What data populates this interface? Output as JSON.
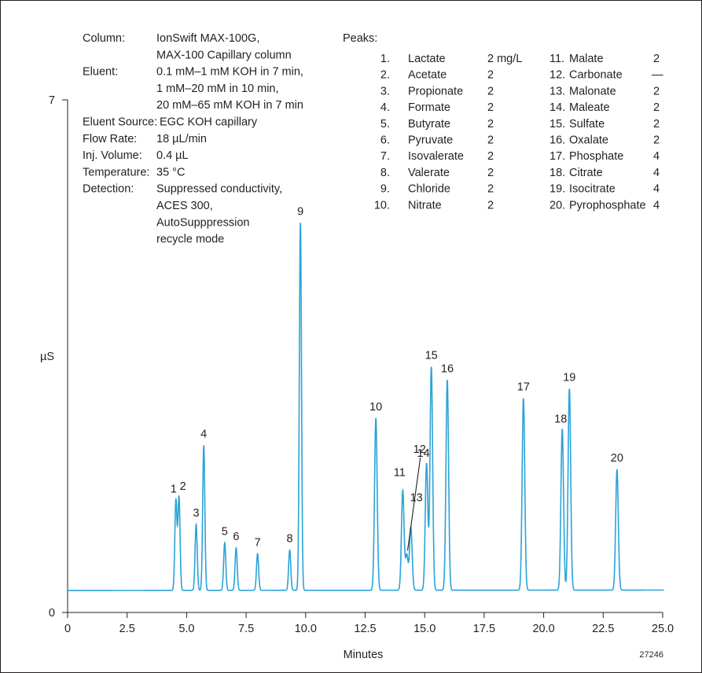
{
  "chart_data": {
    "type": "line",
    "xlabel": "Minutes",
    "ylabel": "µS",
    "xlim": [
      0,
      25
    ],
    "ylim": [
      0,
      7
    ],
    "x_ticks": [
      "0",
      "2.5",
      "5.0",
      "7.5",
      "10.0",
      "12.5",
      "15.0",
      "17.5",
      "20.0",
      "22.5",
      "25.0"
    ],
    "y_ticks": [
      "0",
      "7"
    ],
    "line_color": "#2ba3d8",
    "figure_id": "27246",
    "baseline": 0.3,
    "peaks": [
      {
        "label": "1",
        "x": 4.55,
        "height": 1.23
      },
      {
        "label": "2",
        "x": 4.68,
        "height": 1.27
      },
      {
        "label": "3",
        "x": 5.4,
        "height": 0.9
      },
      {
        "label": "4",
        "x": 5.72,
        "height": 1.98
      },
      {
        "label": "5",
        "x": 6.6,
        "height": 0.65
      },
      {
        "label": "6",
        "x": 7.08,
        "height": 0.58
      },
      {
        "label": "7",
        "x": 7.98,
        "height": 0.5
      },
      {
        "label": "8",
        "x": 9.33,
        "height": 0.55
      },
      {
        "label": "9",
        "x": 9.78,
        "height": 5.02
      },
      {
        "label": "10",
        "x": 12.95,
        "height": 2.35
      },
      {
        "label": "11",
        "x": 14.08,
        "height": 1.36
      },
      {
        "label": "12",
        "x": 14.25,
        "height": 0.48
      },
      {
        "label": "13",
        "x": 14.42,
        "height": 0.86
      },
      {
        "label": "14",
        "x": 15.08,
        "height": 1.73
      },
      {
        "label": "15",
        "x": 15.28,
        "height": 3.05
      },
      {
        "label": "16",
        "x": 15.95,
        "height": 2.87
      },
      {
        "label": "17",
        "x": 19.15,
        "height": 2.62
      },
      {
        "label": "18",
        "x": 20.78,
        "height": 2.2
      },
      {
        "label": "19",
        "x": 21.08,
        "height": 2.75
      },
      {
        "label": "20",
        "x": 23.08,
        "height": 1.65
      }
    ]
  },
  "conditions": [
    {
      "label": "Column:",
      "lines": [
        "IonSwift MAX-100G,",
        "MAX-100 Capillary column"
      ]
    },
    {
      "label": "Eluent:",
      "lines": [
        "0.1 mM–1 mM KOH in 7 min,",
        "1 mM–20 mM in 10 min,",
        "20 mM–65 mM KOH in 7 min"
      ]
    },
    {
      "label": "Eluent Source:",
      "lines": [
        "EGC KOH capillary"
      ]
    },
    {
      "label": "Flow Rate:",
      "lines": [
        "18 µL/min"
      ]
    },
    {
      "label": "Inj. Volume:",
      "lines": [
        "0.4 µL"
      ]
    },
    {
      "label": "Temperature:",
      "lines": [
        "35 °C"
      ]
    },
    {
      "label": "Detection:",
      "lines": [
        "Suppressed conductivity,",
        "ACES 300,",
        "AutoSupppression",
        "recycle mode"
      ]
    }
  ],
  "peaks_title": "Peaks:",
  "peak_table": [
    {
      "num": "1.",
      "name": "Lactate",
      "conc": "2 mg/L"
    },
    {
      "num": "2.",
      "name": "Acetate",
      "conc": "2"
    },
    {
      "num": "3.",
      "name": "Propionate",
      "conc": "2"
    },
    {
      "num": "4.",
      "name": "Formate",
      "conc": "2"
    },
    {
      "num": "5.",
      "name": "Butyrate",
      "conc": "2"
    },
    {
      "num": "6.",
      "name": "Pyruvate",
      "conc": "2"
    },
    {
      "num": "7.",
      "name": "Isovalerate",
      "conc": "2"
    },
    {
      "num": "8.",
      "name": "Valerate",
      "conc": "2"
    },
    {
      "num": "9.",
      "name": "Chloride",
      "conc": "2"
    },
    {
      "num": "10.",
      "name": "Nitrate",
      "conc": "2"
    },
    {
      "num": "11.",
      "name": "Malate",
      "conc": "2"
    },
    {
      "num": "12.",
      "name": "Carbonate",
      "conc": "—"
    },
    {
      "num": "13.",
      "name": "Malonate",
      "conc": "2"
    },
    {
      "num": "14.",
      "name": "Maleate",
      "conc": "2"
    },
    {
      "num": "15.",
      "name": "Sulfate",
      "conc": "2"
    },
    {
      "num": "16.",
      "name": "Oxalate",
      "conc": "2"
    },
    {
      "num": "17.",
      "name": "Phosphate",
      "conc": "4"
    },
    {
      "num": "18.",
      "name": "Citrate",
      "conc": "4"
    },
    {
      "num": "19.",
      "name": "Isocitrate",
      "conc": "4"
    },
    {
      "num": "20.",
      "name": "Pyrophosphate",
      "conc": "4"
    }
  ]
}
